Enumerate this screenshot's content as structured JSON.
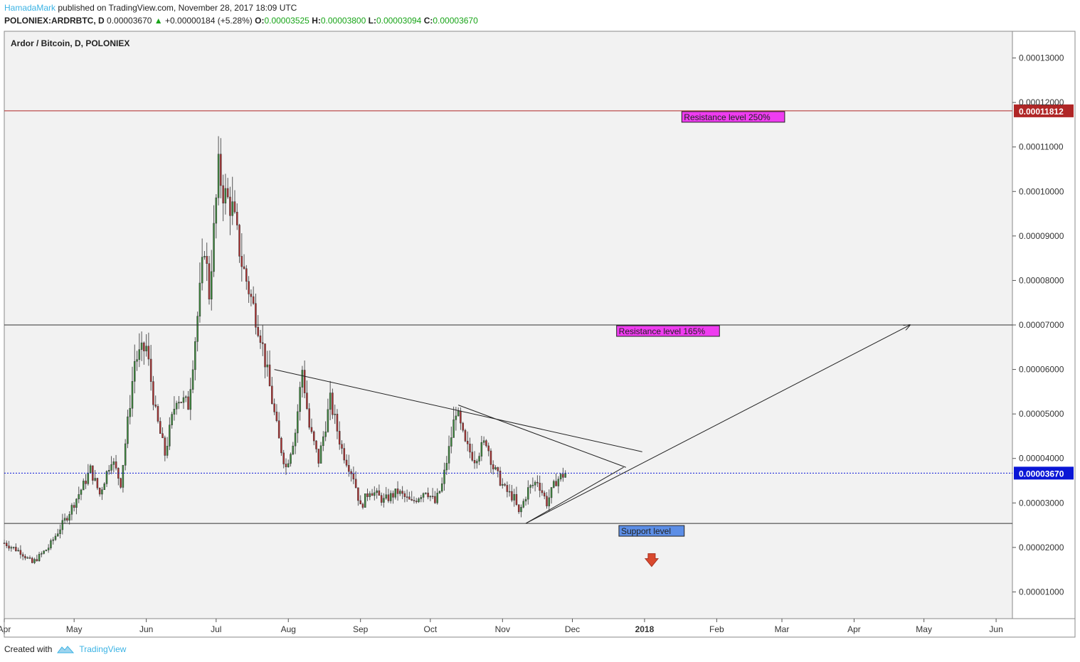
{
  "header": {
    "author": "HamadaMark",
    "published": "published on TradingView.com, November 28, 2017 18:09 UTC",
    "symbol": "POLONIEX:ARDRBTC, D",
    "last": "0.00003670",
    "change_arrow": "▲",
    "change": "+0.00000184 (+5.28%)",
    "o_label": "O:",
    "o_value": "0.00003525",
    "h_label": "H:",
    "h_value": "0.00003800",
    "l_label": "L:",
    "l_value": "0.00003094",
    "c_label": "C:",
    "c_value": "0.00003670"
  },
  "footer": {
    "created_with": "Created with",
    "brand": "TradingView",
    "brand_icon": "tradingview-cloud-icon"
  },
  "colors": {
    "up": "#3c8a3c",
    "down": "#b03030",
    "background": "#f2f2f2",
    "resistance_250": "#b02626",
    "label_magenta": "#ef3cf0",
    "label_blue": "#5c8ee6",
    "current_price": "#0a16d6",
    "arrow_down": "#d9492e"
  },
  "chart_data": {
    "type": "candlestick",
    "title": "Ardor / Bitcoin, D, POLONIEX",
    "ylim": [
      4e-06,
      0.000136
    ],
    "y_ticks": [
      "0.00001000",
      "0.00002000",
      "0.00003000",
      "0.00004000",
      "0.00005000",
      "0.00006000",
      "0.00007000",
      "0.00008000",
      "0.00009000",
      "0.00010000",
      "0.00011000",
      "0.00012000",
      "0.00013000"
    ],
    "y_tick_values": [
      1e-05,
      2e-05,
      3e-05,
      4e-05,
      5e-05,
      6e-05,
      7e-05,
      8e-05,
      9e-05,
      0.0001,
      0.00011,
      0.00012,
      0.00013
    ],
    "x_range": [
      "2017-04-01",
      "2018-06-08"
    ],
    "x_ticks": [
      {
        "label": "Apr",
        "date": "2017-04-01",
        "bold": false
      },
      {
        "label": "May",
        "date": "2017-05-01",
        "bold": false
      },
      {
        "label": "Jun",
        "date": "2017-06-01",
        "bold": false
      },
      {
        "label": "Jul",
        "date": "2017-07-01",
        "bold": false
      },
      {
        "label": "Aug",
        "date": "2017-08-01",
        "bold": false
      },
      {
        "label": "Sep",
        "date": "2017-09-01",
        "bold": false
      },
      {
        "label": "Oct",
        "date": "2017-10-01",
        "bold": false
      },
      {
        "label": "Nov",
        "date": "2017-11-01",
        "bold": false
      },
      {
        "label": "Dec",
        "date": "2017-12-01",
        "bold": false
      },
      {
        "label": "2018",
        "date": "2018-01-01",
        "bold": true
      },
      {
        "label": "Feb",
        "date": "2018-02-01",
        "bold": false
      },
      {
        "label": "Mar",
        "date": "2018-03-01",
        "bold": false
      },
      {
        "label": "Apr",
        "date": "2018-04-01",
        "bold": false
      },
      {
        "label": "May",
        "date": "2018-05-01",
        "bold": false
      },
      {
        "label": "Jun",
        "date": "2018-06-01",
        "bold": false
      }
    ],
    "price_keypoints": [
      [
        "2017-04-01",
        2.1e-05
      ],
      [
        "2017-04-08",
        1.9e-05
      ],
      [
        "2017-04-13",
        1.65e-05
      ],
      [
        "2017-04-20",
        2e-05
      ],
      [
        "2017-04-28",
        2.7e-05
      ],
      [
        "2017-05-05",
        3.4e-05
      ],
      [
        "2017-05-08",
        3.75e-05
      ],
      [
        "2017-05-12",
        3.2e-05
      ],
      [
        "2017-05-17",
        4e-05
      ],
      [
        "2017-05-21",
        3.45e-05
      ],
      [
        "2017-05-24",
        4.8e-05
      ],
      [
        "2017-05-27",
        6.2e-05
      ],
      [
        "2017-06-01",
        6.5e-05
      ],
      [
        "2017-06-05",
        5e-05
      ],
      [
        "2017-06-09",
        4.1e-05
      ],
      [
        "2017-06-14",
        5.4e-05
      ],
      [
        "2017-06-19",
        5.2e-05
      ],
      [
        "2017-06-23",
        7.2e-05
      ],
      [
        "2017-06-26",
        8.8e-05
      ],
      [
        "2017-06-28",
        7.7e-05
      ],
      [
        "2017-07-02",
        0.000105
      ],
      [
        "2017-07-04",
        0.0001
      ],
      [
        "2017-07-08",
        9.6e-05
      ],
      [
        "2017-07-12",
        8.4e-05
      ],
      [
        "2017-07-16",
        7.6e-05
      ],
      [
        "2017-07-20",
        6.8e-05
      ],
      [
        "2017-07-24",
        5.6e-05
      ],
      [
        "2017-07-28",
        4.4e-05
      ],
      [
        "2017-07-31",
        3.8e-05
      ],
      [
        "2017-08-04",
        4.6e-05
      ],
      [
        "2017-08-07",
        6e-05
      ],
      [
        "2017-08-10",
        4.7e-05
      ],
      [
        "2017-08-14",
        3.95e-05
      ],
      [
        "2017-08-19",
        5.3e-05
      ],
      [
        "2017-08-24",
        4.2e-05
      ],
      [
        "2017-08-29",
        3.6e-05
      ],
      [
        "2017-09-01",
        2.9e-05
      ],
      [
        "2017-09-05",
        3.3e-05
      ],
      [
        "2017-09-11",
        3.05e-05
      ],
      [
        "2017-09-17",
        3.25e-05
      ],
      [
        "2017-09-23",
        3e-05
      ],
      [
        "2017-09-29",
        3.3e-05
      ],
      [
        "2017-10-03",
        3e-05
      ],
      [
        "2017-10-06",
        3.4e-05
      ],
      [
        "2017-10-09",
        4.2e-05
      ],
      [
        "2017-10-12",
        5.1e-05
      ],
      [
        "2017-10-16",
        4.3e-05
      ],
      [
        "2017-10-20",
        4e-05
      ],
      [
        "2017-10-25",
        4.4e-05
      ],
      [
        "2017-10-28",
        3.8e-05
      ],
      [
        "2017-11-02",
        3.3e-05
      ],
      [
        "2017-11-06",
        3.1e-05
      ],
      [
        "2017-11-08",
        2.75e-05
      ],
      [
        "2017-11-12",
        3.3e-05
      ],
      [
        "2017-11-16",
        3.5e-05
      ],
      [
        "2017-11-20",
        3e-05
      ],
      [
        "2017-11-24",
        3.5e-05
      ],
      [
        "2017-11-28",
        3.67e-05
      ]
    ],
    "horizontal_lines": [
      {
        "value": 0.00011812,
        "style": "solid",
        "color": "#b02626",
        "label": "Resistance level 250%",
        "label_date": "2018-01-17",
        "price_tag": "0.00011812"
      },
      {
        "value": 7e-05,
        "style": "solid",
        "color": "#333333",
        "label": "Resistance level 165%",
        "label_date": "2017-12-20"
      },
      {
        "value": 2.54e-05,
        "style": "solid",
        "color": "#333333",
        "label": "Support level",
        "label_date": "2017-12-21"
      },
      {
        "value": 3.67e-05,
        "style": "dotted",
        "color": "#0a16d6",
        "price_tag": "0.00003670"
      }
    ],
    "trend_lines": [
      {
        "from": [
          "2017-07-26",
          6e-05
        ],
        "to": [
          "2017-12-31",
          4.15e-05
        ]
      },
      {
        "from": [
          "2017-10-13",
          5.2e-05
        ],
        "to": [
          "2017-12-24",
          3.8e-05
        ]
      },
      {
        "from": [
          "2017-11-11",
          2.54e-05
        ],
        "to": [
          "2017-12-23",
          3.8e-05
        ]
      },
      {
        "from": [
          "2017-11-11",
          2.54e-05
        ],
        "to": [
          "2018-04-25",
          7e-05
        ],
        "arrow": true
      }
    ],
    "down_arrow_marker": {
      "date": "2018-01-01",
      "value": 1.7e-05
    }
  }
}
